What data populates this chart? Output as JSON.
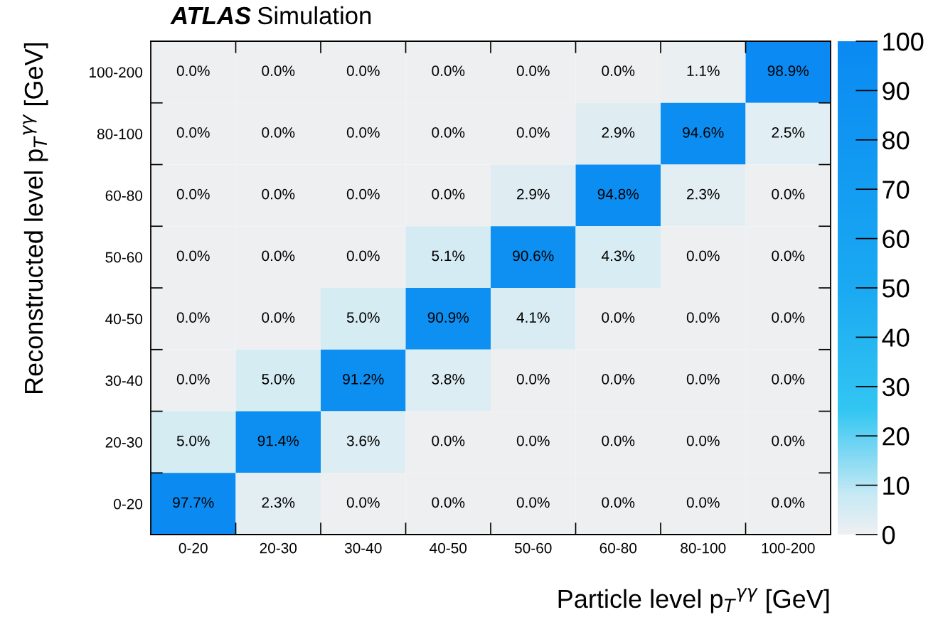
{
  "chart_data": {
    "type": "heatmap",
    "title": "ATLAS Simulation",
    "xlabel": "Particle level p$_{T}$$^{γγ}$ [GeV]",
    "ylabel": "Reconstructed level p$_{T}$$^{γγ}$ [GeV]",
    "categories": [
      "0-20",
      "20-30",
      "30-40",
      "40-50",
      "50-60",
      "60-80",
      "80-100",
      "100-200"
    ],
    "y_categories": [
      "100-200",
      "80-100",
      "60-80",
      "50-60",
      "40-50",
      "30-40",
      "20-30",
      "0-20"
    ],
    "cells": [
      [
        0.0,
        0.0,
        0.0,
        0.0,
        0.0,
        0.0,
        1.1,
        98.9
      ],
      [
        0.0,
        0.0,
        0.0,
        0.0,
        0.0,
        2.9,
        94.6,
        2.5
      ],
      [
        0.0,
        0.0,
        0.0,
        0.0,
        2.9,
        94.8,
        2.3,
        0.0
      ],
      [
        0.0,
        0.0,
        0.0,
        5.1,
        90.6,
        4.3,
        0.0,
        0.0
      ],
      [
        0.0,
        0.0,
        5.0,
        90.9,
        4.1,
        0.0,
        0.0,
        0.0
      ],
      [
        0.0,
        5.0,
        91.2,
        3.8,
        0.0,
        0.0,
        0.0,
        0.0
      ],
      [
        5.0,
        91.4,
        3.6,
        0.0,
        0.0,
        0.0,
        0.0,
        0.0
      ],
      [
        97.7,
        2.3,
        0.0,
        0.0,
        0.0,
        0.0,
        0.0,
        0.0
      ]
    ],
    "cell_labels": [
      [
        "0.0%",
        "0.0%",
        "0.0%",
        "0.0%",
        "0.0%",
        "0.0%",
        "1.1%",
        "98.9%"
      ],
      [
        "0.0%",
        "0.0%",
        "0.0%",
        "0.0%",
        "0.0%",
        "2.9%",
        "94.6%",
        "2.5%"
      ],
      [
        "0.0%",
        "0.0%",
        "0.0%",
        "0.0%",
        "2.9%",
        "94.8%",
        "2.3%",
        "0.0%"
      ],
      [
        "0.0%",
        "0.0%",
        "0.0%",
        "5.1%",
        "90.6%",
        "4.3%",
        "0.0%",
        "0.0%"
      ],
      [
        "0.0%",
        "0.0%",
        "5.0%",
        "90.9%",
        "4.1%",
        "0.0%",
        "0.0%",
        "0.0%"
      ],
      [
        "0.0%",
        "5.0%",
        "91.2%",
        "3.8%",
        "0.0%",
        "0.0%",
        "0.0%",
        "0.0%"
      ],
      [
        "5.0%",
        "91.4%",
        "3.6%",
        "0.0%",
        "0.0%",
        "0.0%",
        "0.0%",
        "0.0%"
      ],
      [
        "97.7%",
        "2.3%",
        "0.0%",
        "0.0%",
        "0.0%",
        "0.0%",
        "0.0%",
        "0.0%"
      ]
    ],
    "clim": [
      0,
      100
    ],
    "cticks": [
      0,
      10,
      20,
      30,
      40,
      50,
      60,
      70,
      80,
      90,
      100
    ]
  }
}
